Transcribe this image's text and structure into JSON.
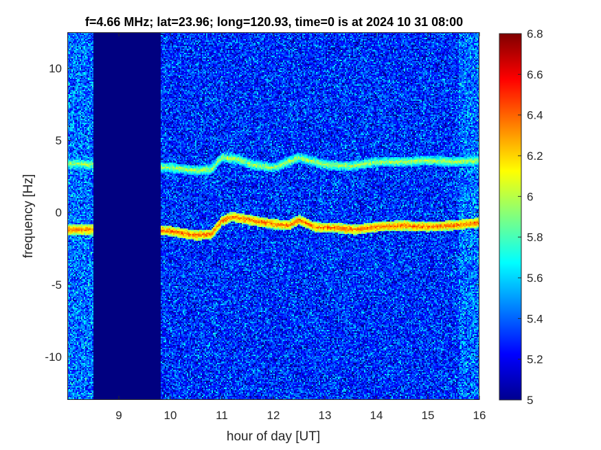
{
  "chart_data": {
    "type": "heatmap",
    "title": "f=4.66 MHz;  lat=23.96; long=120.93, time=0 is at 2024 10 31 08:00",
    "xlabel": "hour of day [UT]",
    "ylabel": "frequency [Hz]",
    "xlim": [
      8.0,
      16.0
    ],
    "ylim": [
      -13,
      12.5
    ],
    "xticks": [
      9,
      10,
      11,
      12,
      13,
      14,
      15,
      16
    ],
    "yticks": [
      10,
      5,
      0,
      -5,
      -10
    ],
    "colorbar": {
      "colormap": "jet",
      "clim": [
        5,
        6.8
      ],
      "ticks": [
        "6.8",
        "6.6",
        "6.4",
        "6.2",
        "6",
        "5.8",
        "5.6",
        "5.4",
        "5.2",
        "5"
      ]
    },
    "data_gap": {
      "x_start": 8.52,
      "x_end": 9.8,
      "value": 5.0
    },
    "background": {
      "typical_value": 5.3,
      "noise_spread": 0.35
    },
    "traces": [
      {
        "points": [
          [
            8.0,
            -1.2
          ],
          [
            8.5,
            -1.2
          ],
          [
            9.0,
            -1.3
          ],
          [
            9.5,
            -1.1
          ],
          [
            10.0,
            -1.3
          ],
          [
            10.5,
            -1.6
          ],
          [
            10.8,
            -1.5
          ],
          [
            11.0,
            -0.6
          ],
          [
            11.2,
            -0.3
          ],
          [
            11.5,
            -0.5
          ],
          [
            12.0,
            -0.8
          ],
          [
            12.3,
            -0.9
          ],
          [
            12.5,
            -0.5
          ],
          [
            12.8,
            -1.0
          ],
          [
            13.3,
            -1.1
          ],
          [
            13.6,
            -1.2
          ],
          [
            14.0,
            -1.0
          ],
          [
            14.5,
            -0.9
          ],
          [
            15.0,
            -1.0
          ],
          [
            15.5,
            -0.9
          ],
          [
            16.0,
            -0.7
          ]
        ],
        "strength": 6.4
      },
      {
        "points": [
          [
            8.0,
            3.4
          ],
          [
            8.5,
            3.3
          ],
          [
            9.0,
            3.2
          ],
          [
            9.5,
            3.2
          ],
          [
            10.0,
            3.1
          ],
          [
            10.5,
            2.9
          ],
          [
            10.8,
            3.0
          ],
          [
            11.0,
            3.8
          ],
          [
            11.3,
            3.7
          ],
          [
            11.6,
            3.3
          ],
          [
            12.0,
            3.1
          ],
          [
            12.5,
            3.8
          ],
          [
            13.0,
            3.3
          ],
          [
            13.5,
            3.2
          ],
          [
            14.0,
            3.5
          ],
          [
            14.5,
            3.5
          ],
          [
            15.0,
            3.6
          ],
          [
            15.5,
            3.5
          ],
          [
            16.0,
            3.6
          ]
        ],
        "strength": 6.0
      }
    ]
  }
}
